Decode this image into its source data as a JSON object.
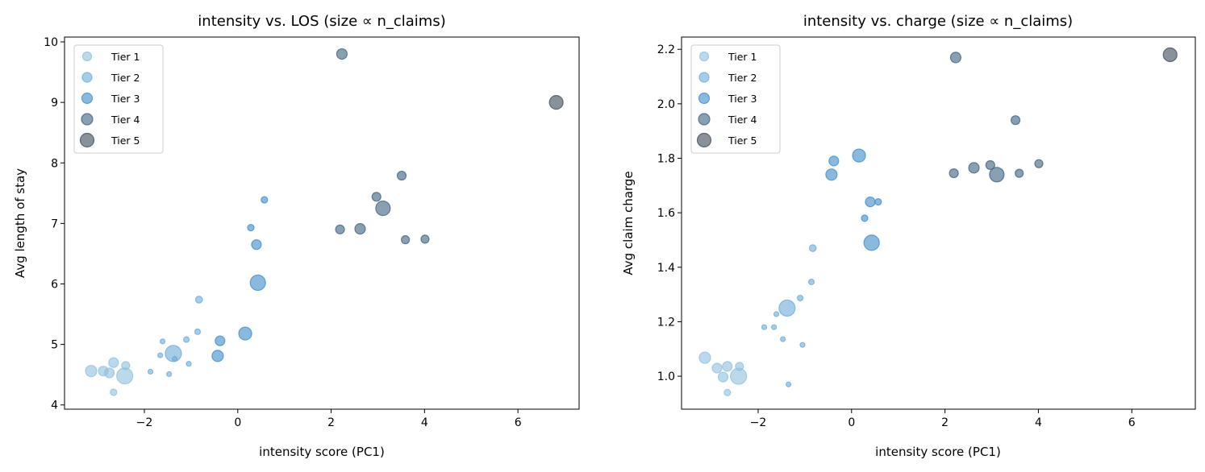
{
  "chart_data": [
    {
      "type": "scatter",
      "title": "intensity vs. LOS (size ∝ n_claims)",
      "xlabel": "intensity score (PC1)",
      "ylabel": "Avg length of stay",
      "xlim": [
        -3.71,
        7.31
      ],
      "ylim": [
        3.93,
        10.08
      ],
      "xticks": [
        -2,
        0,
        2,
        4,
        6
      ],
      "yticks": [
        4,
        5,
        6,
        7,
        8,
        9,
        10
      ],
      "grid": false,
      "legend_position": "top-left",
      "yfield": "los"
    },
    {
      "type": "scatter",
      "title": "intensity vs. charge (size ∝ n_claims)",
      "xlabel": "intensity score (PC1)",
      "ylabel": "Avg claim charge",
      "xlim": [
        -3.64,
        7.36
      ],
      "ylim": [
        0.879,
        2.245
      ],
      "xticks": [
        -2,
        0,
        2,
        4,
        6
      ],
      "yticks": [
        1.0,
        1.2,
        1.4,
        1.6,
        1.8,
        2.0,
        2.2
      ],
      "grid": false,
      "legend_position": "top-left",
      "yfield": "charge"
    }
  ],
  "series": [
    {
      "name": "Tier 1",
      "color": "#8ec0de",
      "points": [
        {
          "x": -3.14,
          "los": 4.56,
          "charge": 1.068,
          "size": 49
        },
        {
          "x": -2.88,
          "los": 4.56,
          "charge": 1.03,
          "size": 36
        },
        {
          "x": -2.75,
          "los": 4.53,
          "charge": 0.997,
          "size": 36
        },
        {
          "x": -2.66,
          "los": 4.7,
          "charge": 1.036,
          "size": 36
        },
        {
          "x": -2.66,
          "los": 4.21,
          "charge": 0.94,
          "size": 16
        },
        {
          "x": -2.4,
          "los": 4.65,
          "charge": 1.036,
          "size": 25
        },
        {
          "x": -2.42,
          "los": 4.48,
          "charge": 1.0,
          "size": 100
        }
      ]
    },
    {
      "name": "Tier 2",
      "color": "#6aaad8",
      "points": [
        {
          "x": -1.87,
          "los": 4.55,
          "charge": 1.18,
          "size": 9
        },
        {
          "x": -1.66,
          "los": 4.82,
          "charge": 1.18,
          "size": 9
        },
        {
          "x": -1.61,
          "los": 5.05,
          "charge": 1.228,
          "size": 9
        },
        {
          "x": -1.47,
          "los": 4.51,
          "charge": 1.136,
          "size": 9
        },
        {
          "x": -1.38,
          "los": 4.85,
          "charge": 1.25,
          "size": 100
        },
        {
          "x": -1.35,
          "los": 4.76,
          "charge": 0.97,
          "size": 9
        },
        {
          "x": -1.1,
          "los": 5.08,
          "charge": 1.287,
          "size": 12
        },
        {
          "x": -1.05,
          "los": 4.68,
          "charge": 1.115,
          "size": 9
        },
        {
          "x": -0.86,
          "los": 5.21,
          "charge": 1.346,
          "size": 12
        },
        {
          "x": -0.83,
          "los": 5.74,
          "charge": 1.47,
          "size": 18
        }
      ]
    },
    {
      "name": "Tier 3",
      "color": "#3b8bc8",
      "points": [
        {
          "x": -0.38,
          "los": 5.06,
          "charge": 1.79,
          "size": 36
        },
        {
          "x": -0.43,
          "los": 4.81,
          "charge": 1.74,
          "size": 49
        },
        {
          "x": 0.16,
          "los": 5.18,
          "charge": 1.81,
          "size": 64
        },
        {
          "x": 0.43,
          "los": 6.02,
          "charge": 1.49,
          "size": 90
        },
        {
          "x": 0.4,
          "los": 6.65,
          "charge": 1.64,
          "size": 36
        },
        {
          "x": 0.28,
          "los": 6.93,
          "charge": 1.58,
          "size": 16
        },
        {
          "x": 0.57,
          "los": 7.39,
          "charge": 1.64,
          "size": 16
        }
      ]
    },
    {
      "name": "Tier 4",
      "color": "#3a5f7f",
      "points": [
        {
          "x": 2.23,
          "los": 9.8,
          "charge": 2.17,
          "size": 42
        },
        {
          "x": 2.19,
          "los": 6.9,
          "charge": 1.745,
          "size": 30
        },
        {
          "x": 2.62,
          "los": 6.91,
          "charge": 1.765,
          "size": 42
        },
        {
          "x": 2.97,
          "los": 7.44,
          "charge": 1.775,
          "size": 30
        },
        {
          "x": 3.11,
          "los": 7.25,
          "charge": 1.74,
          "size": 81
        },
        {
          "x": 3.51,
          "los": 7.79,
          "charge": 1.94,
          "size": 30
        },
        {
          "x": 3.59,
          "los": 6.73,
          "charge": 1.745,
          "size": 25
        },
        {
          "x": 4.01,
          "los": 6.74,
          "charge": 1.78,
          "size": 25
        }
      ]
    },
    {
      "name": "Tier 5",
      "color": "#3b4a58",
      "points": [
        {
          "x": 6.82,
          "los": 9.0,
          "charge": 2.18,
          "size": 72
        }
      ]
    }
  ]
}
